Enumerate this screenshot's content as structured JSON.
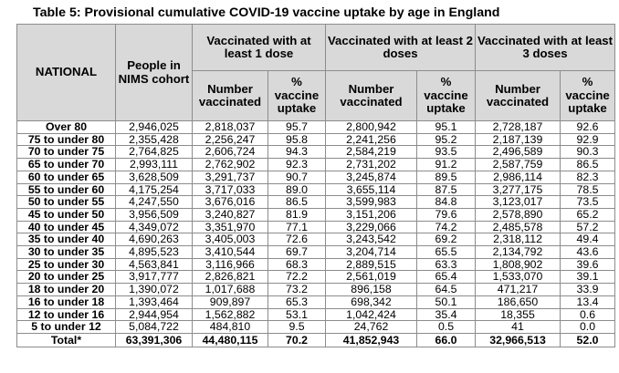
{
  "title": "Table 5: Provisional cumulative COVID-19 vaccine uptake by age in England",
  "headers": {
    "national": "NATIONAL",
    "cohort": "People in NIMS cohort",
    "dose1": "Vaccinated with at least 1 dose",
    "dose2": "Vaccinated with at least 2 doses",
    "dose3": "Vaccinated with at least 3 doses",
    "number": "Number vaccinated",
    "pct": "% vaccine uptake"
  },
  "rows": [
    {
      "age": "Over 80",
      "cohort": "2,946,025",
      "d1n": "2,818,037",
      "d1p": "95.7",
      "d2n": "2,800,942",
      "d2p": "95.1",
      "d3n": "2,728,187",
      "d3p": "92.6"
    },
    {
      "age": "75 to under 80",
      "cohort": "2,355,428",
      "d1n": "2,256,247",
      "d1p": "95.8",
      "d2n": "2,241,256",
      "d2p": "95.2",
      "d3n": "2,187,139",
      "d3p": "92.9"
    },
    {
      "age": "70 to under 75",
      "cohort": "2,764,825",
      "d1n": "2,606,724",
      "d1p": "94.3",
      "d2n": "2,584,219",
      "d2p": "93.5",
      "d3n": "2,496,589",
      "d3p": "90.3"
    },
    {
      "age": "65 to under 70",
      "cohort": "2,993,111",
      "d1n": "2,762,902",
      "d1p": "92.3",
      "d2n": "2,731,202",
      "d2p": "91.2",
      "d3n": "2,587,759",
      "d3p": "86.5"
    },
    {
      "age": "60 to under 65",
      "cohort": "3,628,509",
      "d1n": "3,291,737",
      "d1p": "90.7",
      "d2n": "3,245,874",
      "d2p": "89.5",
      "d3n": "2,986,114",
      "d3p": "82.3"
    },
    {
      "age": "55 to under 60",
      "cohort": "4,175,254",
      "d1n": "3,717,033",
      "d1p": "89.0",
      "d2n": "3,655,114",
      "d2p": "87.5",
      "d3n": "3,277,175",
      "d3p": "78.5"
    },
    {
      "age": "50 to under 55",
      "cohort": "4,247,550",
      "d1n": "3,676,016",
      "d1p": "86.5",
      "d2n": "3,599,983",
      "d2p": "84.8",
      "d3n": "3,123,017",
      "d3p": "73.5"
    },
    {
      "age": "45 to under 50",
      "cohort": "3,956,509",
      "d1n": "3,240,827",
      "d1p": "81.9",
      "d2n": "3,151,206",
      "d2p": "79.6",
      "d3n": "2,578,890",
      "d3p": "65.2"
    },
    {
      "age": "40 to under 45",
      "cohort": "4,349,072",
      "d1n": "3,351,970",
      "d1p": "77.1",
      "d2n": "3,229,066",
      "d2p": "74.2",
      "d3n": "2,485,578",
      "d3p": "57.2"
    },
    {
      "age": "35 to under 40",
      "cohort": "4,690,263",
      "d1n": "3,405,003",
      "d1p": "72.6",
      "d2n": "3,243,542",
      "d2p": "69.2",
      "d3n": "2,318,112",
      "d3p": "49.4"
    },
    {
      "age": "30 to under 35",
      "cohort": "4,895,523",
      "d1n": "3,410,544",
      "d1p": "69.7",
      "d2n": "3,204,714",
      "d2p": "65.5",
      "d3n": "2,134,792",
      "d3p": "43.6"
    },
    {
      "age": "25 to under 30",
      "cohort": "4,563,841",
      "d1n": "3,116,966",
      "d1p": "68.3",
      "d2n": "2,889,515",
      "d2p": "63.3",
      "d3n": "1,808,902",
      "d3p": "39.6"
    },
    {
      "age": "20 to under 25",
      "cohort": "3,917,777",
      "d1n": "2,826,821",
      "d1p": "72.2",
      "d2n": "2,561,019",
      "d2p": "65.4",
      "d3n": "1,533,070",
      "d3p": "39.1"
    },
    {
      "age": "18 to under 20",
      "cohort": "1,390,072",
      "d1n": "1,017,688",
      "d1p": "73.2",
      "d2n": "896,158",
      "d2p": "64.5",
      "d3n": "471,217",
      "d3p": "33.9"
    },
    {
      "age": "16 to under 18",
      "cohort": "1,393,464",
      "d1n": "909,897",
      "d1p": "65.3",
      "d2n": "698,342",
      "d2p": "50.1",
      "d3n": "186,650",
      "d3p": "13.4"
    },
    {
      "age": "12 to under 16",
      "cohort": "2,944,954",
      "d1n": "1,562,882",
      "d1p": "53.1",
      "d2n": "1,042,424",
      "d2p": "35.4",
      "d3n": "18,355",
      "d3p": "0.6"
    },
    {
      "age": "5 to under 12",
      "cohort": "5,084,722",
      "d1n": "484,810",
      "d1p": "9.5",
      "d2n": "24,762",
      "d2p": "0.5",
      "d3n": "41",
      "d3p": "0.0"
    }
  ],
  "total": {
    "age": "Total*",
    "cohort": "63,391,306",
    "d1n": "44,480,115",
    "d1p": "70.2",
    "d2n": "41,852,943",
    "d2p": "66.0",
    "d3n": "32,966,513",
    "d3p": "52.0"
  }
}
